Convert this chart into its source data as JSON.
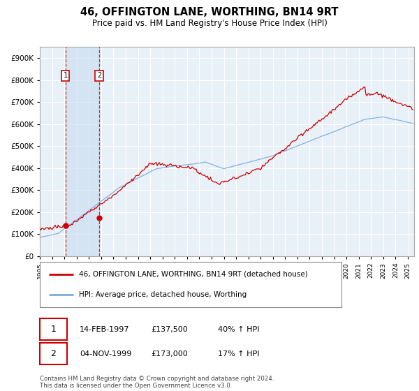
{
  "title": "46, OFFINGTON LANE, WORTHING, BN14 9RT",
  "subtitle": "Price paid vs. HM Land Registry's House Price Index (HPI)",
  "footer": "Contains HM Land Registry data © Crown copyright and database right 2024.\nThis data is licensed under the Open Government Licence v3.0.",
  "legend_line1": "46, OFFINGTON LANE, WORTHING, BN14 9RT (detached house)",
  "legend_line2": "HPI: Average price, detached house, Worthing",
  "transaction1_date": "14-FEB-1997",
  "transaction1_price": "£137,500",
  "transaction1_hpi": "40% ↑ HPI",
  "transaction2_date": "04-NOV-1999",
  "transaction2_price": "£173,000",
  "transaction2_hpi": "17% ↑ HPI",
  "red_color": "#cc0000",
  "blue_color": "#7aabdb",
  "shade_color": "#ddeeff",
  "background_plot": "#e8f0f8",
  "background_fig": "#ffffff",
  "grid_color": "#ffffff",
  "ylim": [
    0,
    950000
  ],
  "yticks": [
    0,
    100000,
    200000,
    300000,
    400000,
    500000,
    600000,
    700000,
    800000,
    900000
  ],
  "ytick_labels": [
    "£0",
    "£100K",
    "£200K",
    "£300K",
    "£400K",
    "£500K",
    "£600K",
    "£700K",
    "£800K",
    "£900K"
  ],
  "xmin": 1995,
  "xmax": 2025.5,
  "t1_x": 1997.083,
  "t1_y": 137500,
  "t2_x": 1999.833,
  "t2_y": 173000
}
